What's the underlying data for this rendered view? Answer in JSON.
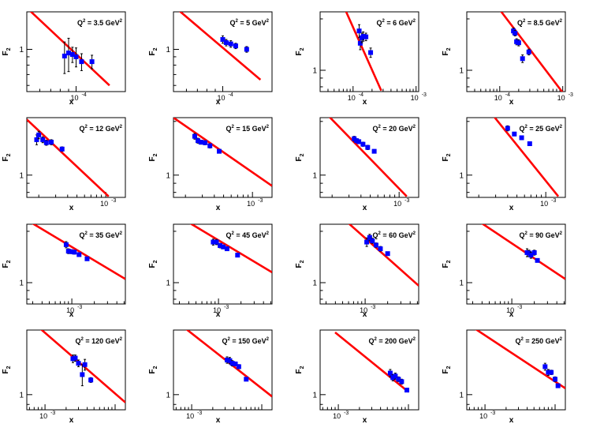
{
  "figure": {
    "xlabel": "x",
    "ylabel_main": "F",
    "ylabel_sub": "2",
    "q2_prefix": "Q",
    "q2_sup": "2",
    "q2_eq": " = ",
    "q2_unit_main": " GeV",
    "q2_unit_sup": "2",
    "colors": {
      "fit": "#ff0000",
      "points": "#0000ff",
      "axes": "#000000",
      "errors": "#000000"
    }
  },
  "chart_data": [
    {
      "type": "scatter",
      "q2": "3.5",
      "xlim": [
        5e-05,
        0.0002
      ],
      "ylim": [
        0.55,
        1.7
      ],
      "yticks": [
        {
          "v": 1,
          "label": "1"
        }
      ],
      "xticks": [
        {
          "v": 0.0001,
          "label": "10",
          "exp": "-4"
        }
      ],
      "points": [
        {
          "x": 8.5e-05,
          "y": 0.91,
          "err": 0.2
        },
        {
          "x": 9e-05,
          "y": 0.95,
          "err": 0.22
        },
        {
          "x": 9.5e-05,
          "y": 0.93,
          "err": 0.1
        },
        {
          "x": 0.0001,
          "y": 0.9,
          "err": 0.12
        },
        {
          "x": 0.000108,
          "y": 0.84,
          "err": 0.1
        },
        {
          "x": 0.000125,
          "y": 0.84,
          "err": 0.08
        }
      ],
      "fit": [
        {
          "x": 5e-05,
          "y": 1.8
        },
        {
          "x": 0.00016,
          "y": 0.6
        }
      ]
    },
    {
      "type": "scatter",
      "q2": "5",
      "xlim": [
        5e-05,
        0.0002
      ],
      "ylim": [
        0.55,
        1.7
      ],
      "yticks": [
        {
          "v": 1,
          "label": "1"
        }
      ],
      "xticks": [
        {
          "v": 0.0001,
          "label": "10",
          "exp": "-4"
        }
      ],
      "points": [
        {
          "x": 0.0001,
          "y": 1.15,
          "err": 0.06
        },
        {
          "x": 0.000105,
          "y": 1.1,
          "err": 0.05
        },
        {
          "x": 0.000112,
          "y": 1.08,
          "err": 0.05
        },
        {
          "x": 0.00012,
          "y": 1.05,
          "err": 0.04
        },
        {
          "x": 0.00014,
          "y": 1.0,
          "err": 0.04
        }
      ],
      "fit": [
        {
          "x": 5e-05,
          "y": 1.85
        },
        {
          "x": 0.00017,
          "y": 0.65
        }
      ]
    },
    {
      "type": "scatter",
      "q2": "6",
      "xlim": [
        3e-05,
        0.0011
      ],
      "ylim": [
        0.75,
        2.2
      ],
      "yticks": [
        {
          "v": 1,
          "label": "1"
        }
      ],
      "xticks": [
        {
          "v": 0.0001,
          "label": "10",
          "exp": "-4"
        },
        {
          "v": 0.001,
          "label": "10",
          "exp": "-3"
        }
      ],
      "points": [
        {
          "x": 0.000125,
          "y": 1.7,
          "err": 0.15
        },
        {
          "x": 0.00013,
          "y": 1.44,
          "err": 0.12
        },
        {
          "x": 0.000138,
          "y": 1.55,
          "err": 0.1
        },
        {
          "x": 0.000145,
          "y": 1.58,
          "err": 0.1
        },
        {
          "x": 0.00016,
          "y": 1.57,
          "err": 0.08
        },
        {
          "x": 0.00019,
          "y": 1.27,
          "err": 0.08
        }
      ],
      "fit": [
        {
          "x": 7e-05,
          "y": 2.4
        },
        {
          "x": 0.00028,
          "y": 0.76
        }
      ]
    },
    {
      "type": "scatter",
      "q2": "8.5",
      "xlim": [
        3e-05,
        0.0011
      ],
      "ylim": [
        0.75,
        2.2
      ],
      "yticks": [
        {
          "v": 1,
          "label": "1"
        }
      ],
      "xticks": [
        {
          "v": 0.0001,
          "label": "10",
          "exp": "-4"
        },
        {
          "v": 0.001,
          "label": "10",
          "exp": "-3"
        }
      ],
      "points": [
        {
          "x": 0.000165,
          "y": 1.7,
          "err": 0.07
        },
        {
          "x": 0.000175,
          "y": 1.65,
          "err": 0.06
        },
        {
          "x": 0.000185,
          "y": 1.47,
          "err": 0.06
        },
        {
          "x": 0.0002,
          "y": 1.45,
          "err": 0.06
        },
        {
          "x": 0.00023,
          "y": 1.17,
          "err": 0.06
        },
        {
          "x": 0.00029,
          "y": 1.28,
          "err": 0.05
        }
      ],
      "fit": [
        {
          "x": 8.5e-05,
          "y": 2.45
        },
        {
          "x": 0.001,
          "y": 0.74
        }
      ]
    },
    {
      "type": "scatter",
      "q2": "12",
      "xlim": [
        0.00015,
        0.0016
      ],
      "ylim": [
        0.75,
        2.1
      ],
      "yticks": [
        {
          "v": 1,
          "label": "1"
        }
      ],
      "xticks": [
        {
          "v": 0.001,
          "label": "10",
          "exp": "-3"
        }
      ],
      "points": [
        {
          "x": 0.00019,
          "y": 1.58,
          "err": 0.1
        },
        {
          "x": 0.0002,
          "y": 1.68,
          "err": 0.08
        },
        {
          "x": 0.00022,
          "y": 1.58,
          "err": 0.06
        },
        {
          "x": 0.00024,
          "y": 1.52,
          "err": 0.05
        },
        {
          "x": 0.00027,
          "y": 1.53,
          "err": 0.05
        },
        {
          "x": 0.00035,
          "y": 1.4,
          "err": 0.04
        }
      ],
      "fit": [
        {
          "x": 0.00015,
          "y": 2.05
        },
        {
          "x": 0.00107,
          "y": 0.76
        }
      ]
    },
    {
      "type": "scatter",
      "q2": "15",
      "xlim": [
        0.00015,
        0.0016
      ],
      "ylim": [
        0.75,
        2.1
      ],
      "yticks": [
        {
          "v": 1,
          "label": "1"
        }
      ],
      "xticks": [
        {
          "v": 0.001,
          "label": "10",
          "exp": "-3"
        }
      ],
      "points": [
        {
          "x": 0.00025,
          "y": 1.65,
          "err": 0.06
        },
        {
          "x": 0.00027,
          "y": 1.56,
          "err": 0.05
        },
        {
          "x": 0.00029,
          "y": 1.53,
          "err": 0.04
        },
        {
          "x": 0.00032,
          "y": 1.52,
          "err": 0.04
        },
        {
          "x": 0.00036,
          "y": 1.46,
          "err": 0.04
        },
        {
          "x": 0.00045,
          "y": 1.36,
          "err": 0.03
        }
      ],
      "fit": [
        {
          "x": 0.00015,
          "y": 2.1
        },
        {
          "x": 0.0016,
          "y": 0.87
        }
      ]
    },
    {
      "type": "scatter",
      "q2": "20",
      "xlim": [
        0.00015,
        0.0016
      ],
      "ylim": [
        0.75,
        2.1
      ],
      "yticks": [
        {
          "v": 1,
          "label": "1"
        }
      ],
      "xticks": [
        {
          "v": 0.001,
          "label": "10",
          "exp": "-3"
        }
      ],
      "points": [
        {
          "x": 0.00034,
          "y": 1.6,
          "err": 0.05
        },
        {
          "x": 0.00036,
          "y": 1.56,
          "err": 0.04
        },
        {
          "x": 0.00038,
          "y": 1.54,
          "err": 0.04
        },
        {
          "x": 0.00042,
          "y": 1.49,
          "err": 0.04
        },
        {
          "x": 0.00047,
          "y": 1.43,
          "err": 0.04
        },
        {
          "x": 0.00055,
          "y": 1.36,
          "err": 0.03
        }
      ],
      "fit": [
        {
          "x": 0.00015,
          "y": 2.4
        },
        {
          "x": 0.0012,
          "y": 0.76
        }
      ]
    },
    {
      "type": "scatter",
      "q2": "25",
      "xlim": [
        0.00015,
        0.0016
      ],
      "ylim": [
        0.75,
        2.1
      ],
      "yticks": [
        {
          "v": 1,
          "label": "1"
        }
      ],
      "xticks": [
        {
          "v": 0.001,
          "label": "10",
          "exp": "-3"
        }
      ],
      "points": [
        {
          "x": 0.0004,
          "y": 1.83,
          "err": 0.06
        },
        {
          "x": 0.00047,
          "y": 1.7,
          "err": 0.04
        },
        {
          "x": 0.00056,
          "y": 1.62,
          "err": 0.04
        },
        {
          "x": 0.00068,
          "y": 1.5,
          "err": 0.03
        }
      ],
      "fit": [
        {
          "x": 0.00022,
          "y": 2.55
        },
        {
          "x": 0.00135,
          "y": 0.76
        }
      ]
    },
    {
      "type": "scatter",
      "q2": "35",
      "xlim": [
        0.00025,
        0.0052
      ],
      "ylim": [
        0.75,
        2.2
      ],
      "yticks": [
        {
          "v": 1,
          "label": "1"
        }
      ],
      "xticks": [
        {
          "v": 0.001,
          "label": "10",
          "exp": "-3"
        }
      ],
      "points": [
        {
          "x": 0.00084,
          "y": 1.67,
          "err": 0.07
        },
        {
          "x": 0.0009,
          "y": 1.53,
          "err": 0.05
        },
        {
          "x": 0.00098,
          "y": 1.52,
          "err": 0.04
        },
        {
          "x": 0.00108,
          "y": 1.51,
          "err": 0.04
        },
        {
          "x": 0.00125,
          "y": 1.46,
          "err": 0.03
        },
        {
          "x": 0.0016,
          "y": 1.38,
          "err": 0.03
        }
      ],
      "fit": [
        {
          "x": 0.00025,
          "y": 2.33
        },
        {
          "x": 0.0052,
          "y": 1.05
        }
      ]
    },
    {
      "type": "scatter",
      "q2": "45",
      "xlim": [
        0.00025,
        0.0052
      ],
      "ylim": [
        0.75,
        2.2
      ],
      "yticks": [
        {
          "v": 1,
          "label": "1"
        }
      ],
      "xticks": [
        {
          "v": 0.001,
          "label": "10",
          "exp": "-3"
        }
      ],
      "points": [
        {
          "x": 0.00085,
          "y": 1.73,
          "err": 0.07
        },
        {
          "x": 0.00094,
          "y": 1.73,
          "err": 0.06
        },
        {
          "x": 0.00105,
          "y": 1.65,
          "err": 0.05
        },
        {
          "x": 0.00116,
          "y": 1.62,
          "err": 0.04
        },
        {
          "x": 0.0013,
          "y": 1.58,
          "err": 0.04
        },
        {
          "x": 0.0018,
          "y": 1.45,
          "err": 0.03
        }
      ],
      "fit": [
        {
          "x": 0.00025,
          "y": 2.55
        },
        {
          "x": 0.0052,
          "y": 1.15
        }
      ]
    },
    {
      "type": "scatter",
      "q2": "60",
      "xlim": [
        0.00025,
        0.0052
      ],
      "ylim": [
        0.75,
        2.2
      ],
      "yticks": [
        {
          "v": 1,
          "label": "1"
        }
      ],
      "xticks": [
        {
          "v": 0.001,
          "label": "10",
          "exp": "-3"
        }
      ],
      "points": [
        {
          "x": 0.00105,
          "y": 1.73,
          "err": 0.1
        },
        {
          "x": 0.00115,
          "y": 1.84,
          "err": 0.08
        },
        {
          "x": 0.00125,
          "y": 1.76,
          "err": 0.06
        },
        {
          "x": 0.0014,
          "y": 1.66,
          "err": 0.05
        },
        {
          "x": 0.0016,
          "y": 1.58,
          "err": 0.05
        },
        {
          "x": 0.002,
          "y": 1.48,
          "err": 0.03
        }
      ],
      "fit": [
        {
          "x": 0.00035,
          "y": 2.75
        },
        {
          "x": 0.0052,
          "y": 0.96
        }
      ]
    },
    {
      "type": "scatter",
      "q2": "90",
      "xlim": [
        0.00025,
        0.0052
      ],
      "ylim": [
        0.75,
        2.2
      ],
      "yticks": [
        {
          "v": 1,
          "label": "1"
        }
      ],
      "xticks": [
        {
          "v": 0.001,
          "label": "10",
          "exp": "-3"
        }
      ],
      "points": [
        {
          "x": 0.0016,
          "y": 1.5,
          "err": 0.08
        },
        {
          "x": 0.0017,
          "y": 1.49,
          "err": 0.06
        },
        {
          "x": 0.0018,
          "y": 1.45,
          "err": 0.06
        },
        {
          "x": 0.002,
          "y": 1.5,
          "err": 0.05
        },
        {
          "x": 0.0022,
          "y": 1.35,
          "err": 0.03
        }
      ],
      "fit": [
        {
          "x": 0.00025,
          "y": 2.55
        },
        {
          "x": 0.0052,
          "y": 1.05
        }
      ]
    },
    {
      "type": "scatter",
      "q2": "120",
      "xlim": [
        0.00055,
        0.014
      ],
      "ylim": [
        0.85,
        2.0
      ],
      "yticks": [
        {
          "v": 1,
          "label": "1"
        }
      ],
      "xticks": [
        {
          "v": 0.001,
          "label": "10",
          "exp": "-3"
        }
      ],
      "points": [
        {
          "x": 0.0025,
          "y": 1.47,
          "err": 0.06
        },
        {
          "x": 0.0027,
          "y": 1.48,
          "err": 0.05
        },
        {
          "x": 0.003,
          "y": 1.4,
          "err": 0.05
        },
        {
          "x": 0.0034,
          "y": 1.24,
          "err": 0.14
        },
        {
          "x": 0.0037,
          "y": 1.38,
          "err": 0.08
        },
        {
          "x": 0.0045,
          "y": 1.17,
          "err": 0.03
        }
      ],
      "fit": [
        {
          "x": 0.00055,
          "y": 2.3
        },
        {
          "x": 0.014,
          "y": 0.92
        }
      ]
    },
    {
      "type": "scatter",
      "q2": "150",
      "xlim": [
        0.00055,
        0.014
      ],
      "ylim": [
        0.85,
        2.0
      ],
      "yticks": [
        {
          "v": 1,
          "label": "1"
        }
      ],
      "xticks": [
        {
          "v": 0.001,
          "label": "10",
          "exp": "-3"
        }
      ],
      "points": [
        {
          "x": 0.0032,
          "y": 1.45,
          "err": 0.05
        },
        {
          "x": 0.0035,
          "y": 1.44,
          "err": 0.05
        },
        {
          "x": 0.0038,
          "y": 1.4,
          "err": 0.04
        },
        {
          "x": 0.0042,
          "y": 1.39,
          "err": 0.03
        },
        {
          "x": 0.0047,
          "y": 1.35,
          "err": 0.03
        },
        {
          "x": 0.006,
          "y": 1.18,
          "err": 0.02
        }
      ],
      "fit": [
        {
          "x": 0.00055,
          "y": 2.25
        },
        {
          "x": 0.014,
          "y": 0.98
        }
      ]
    },
    {
      "type": "scatter",
      "q2": "200",
      "xlim": [
        0.00055,
        0.014
      ],
      "ylim": [
        0.85,
        2.0
      ],
      "yticks": [
        {
          "v": 1,
          "label": "1"
        }
      ],
      "xticks": [
        {
          "v": 0.001,
          "label": "10",
          "exp": "-3"
        }
      ],
      "points": [
        {
          "x": 0.0055,
          "y": 1.26,
          "err": 0.05
        },
        {
          "x": 0.006,
          "y": 1.2,
          "err": 0.04
        },
        {
          "x": 0.0065,
          "y": 1.22,
          "err": 0.04
        },
        {
          "x": 0.0072,
          "y": 1.18,
          "err": 0.03
        },
        {
          "x": 0.008,
          "y": 1.15,
          "err": 0.03
        },
        {
          "x": 0.0095,
          "y": 1.05,
          "err": 0.02
        }
      ],
      "fit": [
        {
          "x": 0.0009,
          "y": 1.95
        },
        {
          "x": 0.01,
          "y": 1.03
        }
      ]
    },
    {
      "type": "scatter",
      "q2": "250",
      "xlim": [
        0.00055,
        0.014
      ],
      "ylim": [
        0.85,
        2.0
      ],
      "yticks": [
        {
          "v": 1,
          "label": "1"
        }
      ],
      "xticks": [
        {
          "v": 0.001,
          "label": "10",
          "exp": "-3"
        }
      ],
      "points": [
        {
          "x": 0.0072,
          "y": 1.35,
          "err": 0.05
        },
        {
          "x": 0.008,
          "y": 1.27,
          "err": 0.04
        },
        {
          "x": 0.0088,
          "y": 1.27,
          "err": 0.03
        },
        {
          "x": 0.01,
          "y": 1.18,
          "err": 0.03
        },
        {
          "x": 0.011,
          "y": 1.1,
          "err": 0.02
        }
      ],
      "fit": [
        {
          "x": 0.00055,
          "y": 2.15
        },
        {
          "x": 0.014,
          "y": 1.07
        }
      ]
    }
  ]
}
